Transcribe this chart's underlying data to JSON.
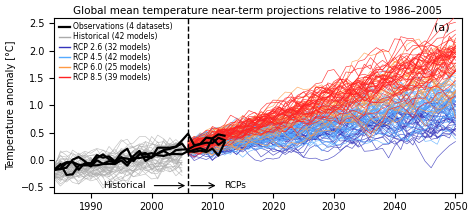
{
  "title": "Global mean temperature near-term projections relative to 1986–2005",
  "ylabel": "Temperature anomaly [°C]",
  "xlim": [
    1984,
    2051
  ],
  "ylim": [
    -0.6,
    2.6
  ],
  "xticks": [
    1990,
    2000,
    2010,
    2020,
    2030,
    2040,
    2050
  ],
  "yticks": [
    -0.5,
    0.0,
    0.5,
    1.0,
    1.5,
    2.0,
    2.5
  ],
  "hist_start": 1984,
  "hist_end": 2005,
  "proj_start": 2006,
  "proj_end": 2050,
  "divider_year": 2006,
  "obs_color": "#000000",
  "historical_color": "#aaaaaa",
  "rcp26_color": "#3333bb",
  "rcp45_color": "#55aaff",
  "rcp60_color": "#ff9944",
  "rcp85_color": "#ff2222",
  "n_historical": 42,
  "n_rcp26": 32,
  "n_rcp45": 42,
  "n_rcp60": 25,
  "n_rcp85": 39,
  "n_obs": 4,
  "panel_label": "(a)",
  "annotation_historical": "Historical",
  "annotation_rcps": "RCPs",
  "legend_entries": [
    "Observations (4 datasets)",
    "Historical (42 models)",
    "RCP 2.6 (32 models)",
    "RCP 4.5 (42 models)",
    "RCP 6.0 (25 models)",
    "RCP 8.5 (39 models)"
  ],
  "legend_colors": [
    "#000000",
    "#aaaaaa",
    "#3333bb",
    "#55aaff",
    "#ff9944",
    "#ff2222"
  ],
  "seed": 42
}
